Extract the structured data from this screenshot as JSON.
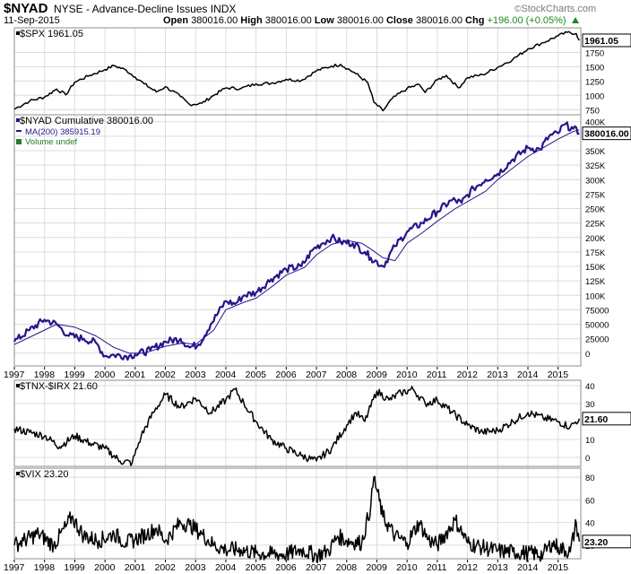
{
  "header": {
    "symbol": "$NYAD",
    "title": "NYSE - Advance-Decline Issues INDX",
    "date": "11-Sep-2015",
    "open_label": "Open",
    "open": "380016.00",
    "high_label": "High",
    "high": "380016.00",
    "low_label": "Low",
    "low": "380016.00",
    "close_label": "Close",
    "close": "380016.00",
    "chg_label": "Chg",
    "chg": "+196.00 (+0.05%)",
    "brand": "StockCharts.com",
    "brand_mark": "©"
  },
  "colors": {
    "price": "#000000",
    "nyad": "#23168a",
    "ma": "#23168a",
    "volume_note": "#2a7a2a",
    "grid": "#dcdcdc",
    "panel_border": "#8c8c8c"
  },
  "chart_data": [
    {
      "type": "line",
      "legend": "$SPX 1961.05",
      "last_value_label": "1961.05",
      "y_ticks": [
        "1750",
        "1500",
        "1250",
        "1000",
        "750"
      ],
      "tick_values": [
        1750,
        1500,
        1250,
        1000,
        750
      ],
      "ylim": [
        660,
        2180
      ],
      "x": [
        1997.0,
        1997.5,
        1998.0,
        1998.4,
        1998.7,
        1999.0,
        1999.5,
        2000.0,
        2000.3,
        2000.7,
        2001.0,
        2001.3,
        2001.7,
        2002.0,
        2002.5,
        2002.8,
        2003.2,
        2003.6,
        2004.0,
        2004.5,
        2005.0,
        2005.5,
        2006.0,
        2006.5,
        2007.0,
        2007.5,
        2007.8,
        2008.3,
        2008.7,
        2008.9,
        2009.2,
        2009.5,
        2010.0,
        2010.4,
        2010.6,
        2011.0,
        2011.3,
        2011.7,
        2012.0,
        2012.5,
        2013.0,
        2013.5,
        2014.0,
        2014.5,
        2015.0,
        2015.3,
        2015.6,
        2015.7
      ],
      "values": [
        760,
        900,
        970,
        1110,
        1010,
        1230,
        1350,
        1450,
        1520,
        1440,
        1320,
        1200,
        1060,
        1150,
        980,
        840,
        860,
        1000,
        1130,
        1120,
        1200,
        1210,
        1280,
        1260,
        1430,
        1510,
        1540,
        1380,
        1220,
        880,
        730,
        940,
        1120,
        1190,
        1050,
        1270,
        1350,
        1130,
        1310,
        1360,
        1490,
        1630,
        1810,
        1920,
        2040,
        2100,
        2080,
        1961.05
      ]
    },
    {
      "type": "line",
      "legend": "$NYAD Cumulative 380016.00",
      "ma_legend": "MA(200) 385915.19",
      "volume_legend": "Volume undef",
      "last_value_label": "380016.00",
      "y_ticks": [
        "400K",
        "375K",
        "350K",
        "325K",
        "300K",
        "275K",
        "250K",
        "225K",
        "200K",
        "175K",
        "150K",
        "125K",
        "100K",
        "75000",
        "50000",
        "25000",
        "0"
      ],
      "tick_values": [
        400000,
        375000,
        350000,
        325000,
        300000,
        275000,
        250000,
        225000,
        200000,
        175000,
        150000,
        125000,
        100000,
        75000,
        50000,
        25000,
        0
      ],
      "ylim": [
        -22000,
        412000
      ],
      "x": [
        1997.0,
        1997.5,
        1998.0,
        1998.4,
        1998.8,
        1999.3,
        1999.7,
        2000.0,
        2000.3,
        2000.8,
        2001.0,
        2001.5,
        2002.0,
        2002.5,
        2002.8,
        2003.1,
        2003.5,
        2004.0,
        2004.3,
        2004.6,
        2005.0,
        2005.5,
        2006.0,
        2006.5,
        2006.9,
        2007.2,
        2007.5,
        2007.8,
        2008.2,
        2008.6,
        2008.8,
        2009.2,
        2009.6,
        2010.0,
        2010.5,
        2011.0,
        2011.5,
        2011.8,
        2012.2,
        2012.6,
        2013.0,
        2013.5,
        2014.0,
        2014.4,
        2014.7,
        2015.0,
        2015.2,
        2015.5,
        2015.7
      ],
      "values": [
        20000,
        40000,
        58000,
        50000,
        30000,
        25000,
        18000,
        -5000,
        -3000,
        -5000,
        -2000,
        5000,
        20000,
        25000,
        10000,
        15000,
        50000,
        90000,
        85000,
        100000,
        105000,
        128000,
        145000,
        150000,
        180000,
        190000,
        200000,
        192000,
        190000,
        175000,
        165000,
        150000,
        185000,
        210000,
        225000,
        245000,
        265000,
        260000,
        285000,
        300000,
        310000,
        335000,
        355000,
        352000,
        375000,
        380000,
        395000,
        388000,
        380016
      ]
    },
    {
      "type": "line",
      "series_role": "moving-average",
      "x": [
        1997.0,
        1997.6,
        1998.4,
        1999.0,
        1999.7,
        2000.3,
        2000.8,
        2001.3,
        2002.0,
        2002.6,
        2003.0,
        2003.6,
        2004.0,
        2004.6,
        2005.0,
        2005.6,
        2006.0,
        2006.6,
        2007.0,
        2007.5,
        2008.0,
        2008.5,
        2008.8,
        2009.2,
        2009.6,
        2010.0,
        2010.5,
        2011.0,
        2011.6,
        2012.0,
        2012.6,
        2013.0,
        2013.5,
        2014.0,
        2014.5,
        2015.0,
        2015.5,
        2015.7
      ],
      "values": [
        15000,
        30000,
        50000,
        45000,
        30000,
        10000,
        0,
        0,
        12000,
        18000,
        15000,
        40000,
        75000,
        88000,
        95000,
        118000,
        135000,
        148000,
        170000,
        188000,
        195000,
        190000,
        180000,
        165000,
        160000,
        190000,
        208000,
        228000,
        250000,
        262000,
        280000,
        300000,
        320000,
        340000,
        355000,
        370000,
        383000,
        385915
      ]
    },
    {
      "type": "line",
      "legend": "$TNX-$IRX 21.60",
      "last_value_label": "21.60",
      "y_ticks": [
        "40",
        "30",
        "20",
        "10",
        "0"
      ],
      "tick_values": [
        40,
        30,
        20,
        10,
        0
      ],
      "ylim": [
        -5,
        43
      ],
      "x": [
        1997.0,
        1997.5,
        1998.0,
        1998.5,
        1999.0,
        1999.5,
        2000.0,
        2000.5,
        2000.9,
        2001.2,
        2001.6,
        2002.0,
        2002.5,
        2003.0,
        2003.5,
        2004.0,
        2004.3,
        2004.6,
        2005.0,
        2005.5,
        2006.0,
        2006.5,
        2007.0,
        2007.5,
        2008.0,
        2008.3,
        2008.6,
        2009.0,
        2009.4,
        2009.8,
        2010.2,
        2010.6,
        2011.0,
        2011.5,
        2012.0,
        2012.5,
        2013.0,
        2013.5,
        2014.0,
        2014.5,
        2015.0,
        2015.4,
        2015.7
      ],
      "values": [
        16,
        14,
        12,
        6,
        12,
        8,
        5,
        -2,
        -3,
        12,
        25,
        35,
        28,
        33,
        25,
        32,
        38,
        30,
        20,
        10,
        5,
        1,
        -2,
        5,
        18,
        25,
        20,
        37,
        32,
        36,
        38,
        30,
        32,
        25,
        18,
        14,
        15,
        20,
        25,
        22,
        20,
        17,
        21.6
      ]
    },
    {
      "type": "line",
      "legend": "$VIX 23.20",
      "last_value_label": "23.20",
      "y_ticks": [
        "80",
        "60",
        "40",
        "20"
      ],
      "tick_values": [
        80,
        60,
        40,
        20
      ],
      "ylim": [
        8,
        88
      ],
      "x": [
        1997.0,
        1997.3,
        1997.8,
        1998.3,
        1998.7,
        1998.9,
        1999.3,
        1999.8,
        2000.3,
        2000.7,
        2001.0,
        2001.4,
        2001.7,
        2002.0,
        2002.5,
        2002.8,
        2003.2,
        2003.6,
        2004.0,
        2004.5,
        2005.0,
        2005.5,
        2006.0,
        2006.5,
        2007.0,
        2007.4,
        2007.7,
        2008.0,
        2008.5,
        2008.8,
        2008.9,
        2009.2,
        2009.6,
        2010.0,
        2010.4,
        2010.7,
        2011.0,
        2011.6,
        2012.0,
        2012.5,
        2013.0,
        2013.5,
        2014.0,
        2014.5,
        2014.8,
        2015.0,
        2015.4,
        2015.6,
        2015.7
      ],
      "values": [
        20,
        24,
        30,
        20,
        36,
        45,
        28,
        24,
        30,
        22,
        25,
        30,
        35,
        24,
        40,
        38,
        30,
        20,
        16,
        16,
        13,
        12,
        12,
        16,
        11,
        15,
        28,
        24,
        22,
        55,
        80,
        45,
        28,
        22,
        40,
        25,
        20,
        42,
        22,
        18,
        15,
        14,
        13,
        12,
        22,
        18,
        14,
        40,
        23.2
      ]
    }
  ],
  "x_axis": {
    "years": [
      "1997",
      "1998",
      "1999",
      "2000",
      "2001",
      "2002",
      "2003",
      "2004",
      "2005",
      "2006",
      "2007",
      "2008",
      "2009",
      "2010",
      "2011",
      "2012",
      "2013",
      "2014",
      "2015"
    ],
    "start": 1997.0,
    "end": 2015.75
  }
}
